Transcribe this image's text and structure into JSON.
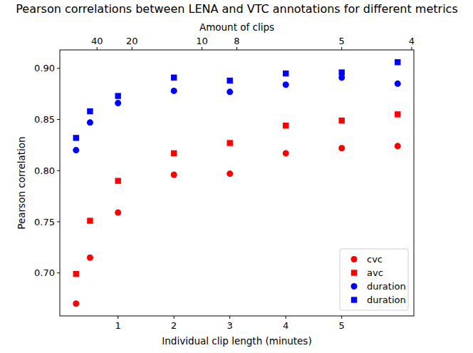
{
  "chart_data": {
    "type": "scatter",
    "title": "Pearson correlations between LENA and VTC annotations for different metrics",
    "x_label": "Individual clip length (minutes)",
    "y_label": "Pearson correlation",
    "x2_label": "Amount of clips",
    "x": [
      0.25,
      0.5,
      1,
      2,
      3,
      4,
      5,
      6
    ],
    "xlim": [
      -0.04,
      6.29
    ],
    "xticks": [
      1,
      2,
      3,
      4,
      5
    ],
    "x2ticks": [
      40,
      20,
      10,
      8,
      5,
      4
    ],
    "x2_total_minutes": 25,
    "ylim": [
      0.658,
      0.918
    ],
    "yticks": [
      {
        "value": 0.7,
        "label": "0.70"
      },
      {
        "value": 0.75,
        "label": "0.75"
      },
      {
        "value": 0.8,
        "label": "0.80"
      },
      {
        "value": 0.85,
        "label": "0.85"
      },
      {
        "value": 0.9,
        "label": "0.90"
      }
    ],
    "legend": "lower right",
    "grid": false,
    "series": [
      {
        "name": "cvc",
        "color": "#ff0000",
        "marker": "circle",
        "values": [
          0.67,
          0.715,
          0.759,
          0.796,
          0.797,
          0.817,
          0.822,
          0.824
        ]
      },
      {
        "name": "avc",
        "color": "#ff0000",
        "marker": "square",
        "values": [
          0.699,
          0.751,
          0.79,
          0.817,
          0.827,
          0.844,
          0.849,
          0.855
        ]
      },
      {
        "name": "duration",
        "color": "#0000ff",
        "marker": "circle",
        "values": [
          0.82,
          0.847,
          0.866,
          0.878,
          0.877,
          0.884,
          0.891,
          0.885
        ]
      },
      {
        "name": "duration",
        "color": "#0000ff",
        "marker": "square",
        "values": [
          0.832,
          0.858,
          0.873,
          0.891,
          0.888,
          0.895,
          0.896,
          0.906
        ]
      }
    ]
  }
}
